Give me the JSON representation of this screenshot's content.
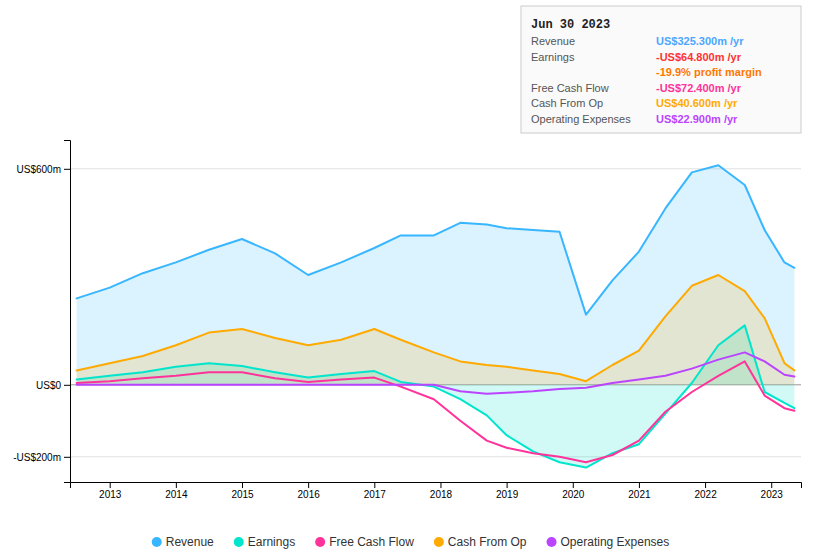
{
  "chart_data": {
    "type": "line",
    "x": [
      2012.5,
      2013.0,
      2013.5,
      2014.0,
      2014.5,
      2015.0,
      2015.5,
      2016.0,
      2016.5,
      2017.0,
      2017.4,
      2017.9,
      2018.3,
      2018.7,
      2019.0,
      2019.4,
      2019.8,
      2020.2,
      2020.6,
      2021.0,
      2021.4,
      2021.8,
      2022.2,
      2022.6,
      2022.9,
      2023.2,
      2023.35
    ],
    "series": [
      {
        "name": "Revenue",
        "type": "area",
        "color": "#38b6ff",
        "values": [
          240,
          270,
          310,
          340,
          375,
          405,
          365,
          305,
          340,
          380,
          415,
          415,
          450,
          445,
          435,
          430,
          425,
          195,
          290,
          370,
          490,
          590,
          610,
          555,
          430,
          340,
          325
        ]
      },
      {
        "name": "Earnings",
        "type": "area",
        "color": "#00e5cc",
        "values": [
          15,
          25,
          35,
          50,
          60,
          52,
          35,
          20,
          30,
          38,
          8,
          -5,
          -40,
          -85,
          -140,
          -185,
          -215,
          -230,
          -190,
          -165,
          -80,
          5,
          110,
          165,
          -20,
          -50,
          -65
        ]
      },
      {
        "name": "Free Cash Flow",
        "type": "line",
        "color": "#ff3399",
        "values": [
          5,
          10,
          18,
          25,
          35,
          35,
          18,
          8,
          15,
          20,
          -5,
          -40,
          -100,
          -155,
          -175,
          -190,
          -200,
          -215,
          -195,
          -155,
          -75,
          -20,
          25,
          65,
          -30,
          -65,
          -72
        ]
      },
      {
        "name": "Cash From Op",
        "type": "area",
        "color": "#ffaa00",
        "values": [
          40,
          60,
          80,
          110,
          145,
          155,
          130,
          110,
          125,
          155,
          125,
          90,
          65,
          55,
          50,
          40,
          30,
          10,
          55,
          95,
          190,
          275,
          305,
          260,
          185,
          60,
          40
        ]
      },
      {
        "name": "Operating Expenses",
        "type": "line",
        "color": "#bb44ff",
        "values": [
          0,
          0,
          0,
          0,
          0,
          0,
          0,
          0,
          0,
          0,
          0,
          0,
          -18,
          -25,
          -22,
          -18,
          -12,
          -8,
          5,
          15,
          25,
          45,
          70,
          90,
          65,
          28,
          23
        ]
      }
    ],
    "xlim": [
      2012.4,
      2023.45
    ],
    "xticks": [
      2013,
      2014,
      2015,
      2016,
      2017,
      2018,
      2019,
      2020,
      2021,
      2022,
      2023
    ],
    "ylim": [
      -270,
      680
    ],
    "yticks": [
      {
        "value": -200,
        "label": "-US$200m"
      },
      {
        "value": 0,
        "label": "US$0"
      },
      {
        "value": 600,
        "label": "US$600m"
      }
    ],
    "grid": true,
    "legend": "bottom",
    "annotations": [
      {
        "text": "Jun 30 2023"
      },
      {
        "label": "Revenue",
        "text": "US$325.300m /yr",
        "color": "#4da6ff"
      },
      {
        "label": "Earnings",
        "text": "-US$64.800m /yr",
        "color": "#ff3333"
      },
      {
        "text": "-19.9% profit margin",
        "color": "#ff7700"
      },
      {
        "label": "Free Cash Flow",
        "text": "-US$72.400m /yr",
        "color": "#ff3399"
      },
      {
        "label": "Cash From Op",
        "text": "US$40.600m /yr",
        "color": "#ffaa00"
      },
      {
        "label": "Operating Expenses",
        "text": "US$22.900m /yr",
        "color": "#bb44ff"
      }
    ]
  }
}
